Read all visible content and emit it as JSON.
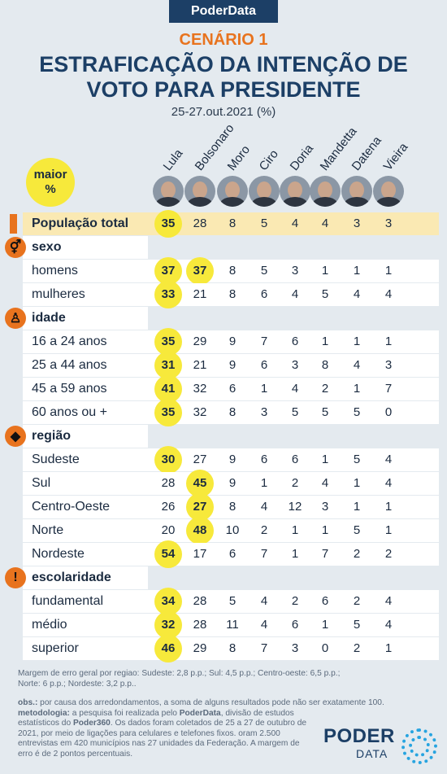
{
  "brand": "PoderData",
  "scenario": "CENÁRIO 1",
  "title_line1": "ESTRAFICAÇÃO DA INTENÇÃO DE",
  "title_line2": "VOTO PARA PRESIDENTE",
  "subtitle": "25-27.out.2021 (%)",
  "maior_line1": "maior",
  "maior_line2": "%",
  "candidates": [
    "Lula",
    "Bolsonaro",
    "Moro",
    "Ciro",
    "Doria",
    "Mandetta",
    "Datena",
    "Vieira"
  ],
  "total": {
    "label": "População total",
    "values": [
      "35",
      "28",
      "8",
      "5",
      "4",
      "4",
      "3",
      "3"
    ]
  },
  "sections": [
    {
      "title": "sexo",
      "icon": "gender-icon",
      "rows": [
        {
          "label": "homens",
          "values": [
            "37",
            "37",
            "8",
            "5",
            "3",
            "1",
            "1",
            "1"
          ]
        },
        {
          "label": "mulheres",
          "values": [
            "33",
            "21",
            "8",
            "6",
            "4",
            "5",
            "4",
            "4"
          ]
        }
      ]
    },
    {
      "title": "idade",
      "icon": "person-icon",
      "rows": [
        {
          "label": "16 a 24 anos",
          "values": [
            "35",
            "29",
            "9",
            "7",
            "6",
            "1",
            "1",
            "1"
          ]
        },
        {
          "label": "25 a 44 anos",
          "values": [
            "31",
            "21",
            "9",
            "6",
            "3",
            "8",
            "4",
            "3"
          ]
        },
        {
          "label": "45 a 59 anos",
          "values": [
            "41",
            "32",
            "6",
            "1",
            "4",
            "2",
            "1",
            "7"
          ]
        },
        {
          "label": "60 anos ou +",
          "values": [
            "35",
            "32",
            "8",
            "3",
            "5",
            "5",
            "5",
            "0"
          ]
        }
      ]
    },
    {
      "title": "região",
      "icon": "brazil-map-icon",
      "rows": [
        {
          "label": "Sudeste",
          "values": [
            "30",
            "27",
            "9",
            "6",
            "6",
            "1",
            "5",
            "4"
          ]
        },
        {
          "label": "Sul",
          "values": [
            "28",
            "45",
            "9",
            "1",
            "2",
            "4",
            "1",
            "4"
          ]
        },
        {
          "label": "Centro-Oeste",
          "values": [
            "26",
            "27",
            "8",
            "4",
            "12",
            "3",
            "1",
            "1"
          ]
        },
        {
          "label": "Norte",
          "values": [
            "20",
            "48",
            "10",
            "2",
            "1",
            "1",
            "5",
            "1"
          ]
        },
        {
          "label": "Nordeste",
          "values": [
            "54",
            "17",
            "6",
            "7",
            "1",
            "7",
            "2",
            "2"
          ]
        }
      ]
    },
    {
      "title": "escolaridade",
      "icon": "exclamation-icon",
      "rows": [
        {
          "label": "fundamental",
          "values": [
            "34",
            "28",
            "5",
            "4",
            "2",
            "6",
            "2",
            "4"
          ]
        },
        {
          "label": "médio",
          "values": [
            "32",
            "28",
            "11",
            "4",
            "6",
            "1",
            "5",
            "4"
          ]
        },
        {
          "label": "superior",
          "values": [
            "46",
            "29",
            "8",
            "7",
            "3",
            "0",
            "2",
            "1"
          ]
        }
      ]
    }
  ],
  "highlights": {
    "total": [
      0
    ],
    "homens": [
      0,
      1
    ],
    "mulheres": [
      0
    ],
    "16 a 24 anos": [
      0
    ],
    "25 a 44 anos": [
      0
    ],
    "45 a 59 anos": [
      0
    ],
    "60 anos ou +": [
      0
    ],
    "Sudeste": [
      0
    ],
    "Sul": [
      1
    ],
    "Centro-Oeste": [
      1
    ],
    "Norte": [
      1
    ],
    "Nordeste": [
      0
    ],
    "fundamental": [
      0
    ],
    "médio": [
      0
    ],
    "superior": [
      0
    ]
  },
  "margin_note_line1": "Margem de erro geral por regiao: Sudeste: 2,8 p.p.; Sul: 4,5 p.p.; Centro-oeste: 6,5 p.p.;",
  "margin_note_line2": "Norte: 6 p.p.; Nordeste: 3,2 p.p..",
  "obs_label": "obs.:",
  "obs_text": " por causa dos arredondamentos, a soma de alguns resultados pode não ser exatamente 100.",
  "method_label": "metodologia:",
  "method_text_1": " a pesquisa foi realizada pelo ",
  "method_bold_1": "PoderData",
  "method_text_2": ", divisão de estudos",
  "method_text_3": "estatísticos do ",
  "method_bold_2": "Poder360",
  "method_text_4": ". Os dados foram coletados de 25 a 27 de outubro de",
  "method_text_5": "2021, por meio de ligações para celulares e telefones fixos. oram 2.500",
  "method_text_6": "entrevistas em 420 municípios nas 27 unidades da Federação. A margem de",
  "method_text_7": "erro é de 2 pontos percentuais.",
  "logo_word1": "PODER",
  "logo_word2": "DATA"
}
